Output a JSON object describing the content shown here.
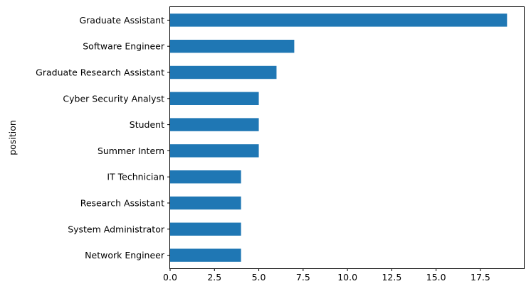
{
  "chart_data": {
    "type": "bar",
    "orientation": "horizontal",
    "title": "",
    "xlabel": "",
    "ylabel": "position",
    "categories": [
      "Graduate Assistant",
      "Software Engineer",
      "Graduate Research Assistant",
      "Cyber Security Analyst",
      "Student",
      "Summer Intern",
      "IT Technician",
      "Research Assistant",
      "System Administrator",
      "Network Engineer"
    ],
    "values": [
      19,
      7,
      6,
      5,
      5,
      5,
      4,
      4,
      4,
      4
    ],
    "xlim": [
      0,
      19.95
    ],
    "xticks": [
      0.0,
      2.5,
      5.0,
      7.5,
      10.0,
      12.5,
      15.0,
      17.5
    ],
    "xtick_labels": [
      "0.0",
      "2.5",
      "5.0",
      "7.5",
      "10.0",
      "12.5",
      "15.0",
      "17.5"
    ],
    "grid": false,
    "legend": "none",
    "bar_color": "#1f77b4"
  }
}
